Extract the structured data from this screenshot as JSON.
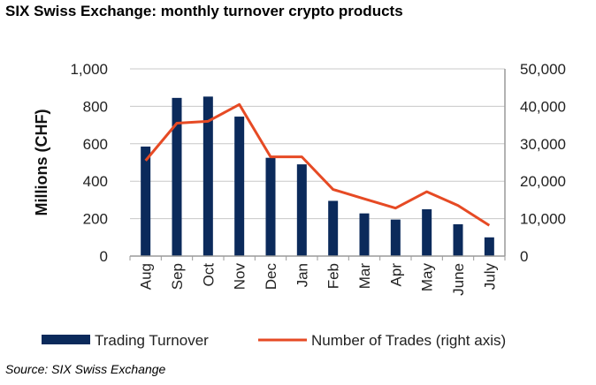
{
  "title": "SIX Swiss Exchange: monthly turnover crypto products",
  "source": "Source: SIX Swiss Exchange",
  "colors": {
    "bar": "#0b2a5b",
    "line": "#e64a24",
    "grid": "#c8c8c8",
    "axis": "#9a9a9a"
  },
  "chart_data": {
    "type": "bar",
    "categories": [
      "Aug",
      "Sep",
      "Oct",
      "Nov",
      "Dec",
      "Jan",
      "Feb",
      "Mar",
      "Apr",
      "May",
      "June",
      "July"
    ],
    "series": [
      {
        "name": "Trading Turnover",
        "type": "bar",
        "axis": "left",
        "values": [
          585,
          845,
          852,
          745,
          525,
          490,
          295,
          228,
          195,
          250,
          170,
          100
        ]
      },
      {
        "name": "Number of Trades (right axis)",
        "type": "line",
        "axis": "right",
        "values": [
          25500,
          35500,
          36000,
          40500,
          26500,
          26500,
          17800,
          15300,
          12800,
          17200,
          13500,
          8200
        ]
      }
    ],
    "ylabel": "Millions (CHF)",
    "ylim": [
      0,
      1000
    ],
    "yticks": [
      "0",
      "200",
      "400",
      "600",
      "800",
      "1,000"
    ],
    "y2lim": [
      0,
      50000
    ],
    "y2ticks": [
      "0",
      "10,000",
      "20,000",
      "30,000",
      "40,000",
      "50,000"
    ],
    "grid": true,
    "legend_position": "bottom"
  }
}
